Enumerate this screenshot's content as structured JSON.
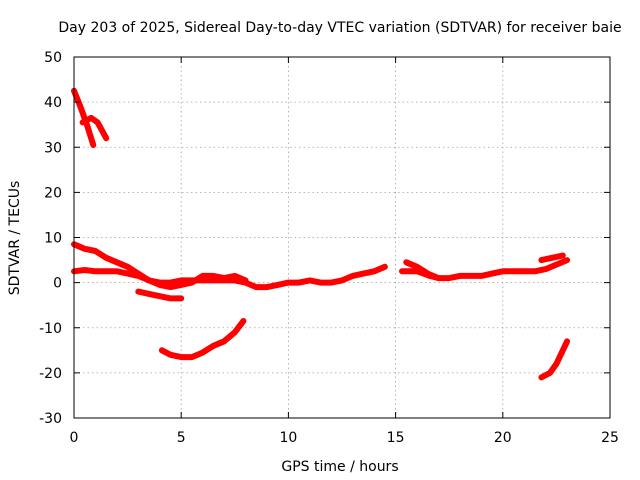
{
  "chart_data": {
    "type": "line",
    "title": "Day 203 of 2025, Sidereal Day-to-day VTEC variation (SDTVAR) for receiver baie",
    "xlabel": "GPS time / hours",
    "ylabel": "SDTVAR / TECUs",
    "xlim": [
      0,
      25
    ],
    "ylim": [
      -30,
      50
    ],
    "grid": true,
    "x_ticks": [
      0,
      5,
      10,
      15,
      20,
      25
    ],
    "y_ticks": [
      -30,
      -20,
      -10,
      0,
      10,
      20,
      30,
      40,
      50
    ],
    "x_tick_labels": [
      "0",
      "5",
      "10",
      "15",
      "20",
      "25"
    ],
    "y_tick_labels": [
      "-30",
      "-20",
      "-10",
      "0",
      "10",
      "20",
      "30",
      "40",
      "50"
    ],
    "color": "#ff0000",
    "series": [
      {
        "name": "trace-1",
        "points": [
          [
            0.0,
            42.5
          ],
          [
            0.3,
            39
          ],
          [
            0.6,
            35
          ],
          [
            0.9,
            30.5
          ]
        ]
      },
      {
        "name": "trace-2",
        "points": [
          [
            0.4,
            35.5
          ],
          [
            0.8,
            36.5
          ],
          [
            1.1,
            35.5
          ],
          [
            1.5,
            32
          ]
        ]
      },
      {
        "name": "trace-3",
        "points": [
          [
            0.0,
            8.5
          ],
          [
            0.5,
            7.5
          ],
          [
            1.0,
            7
          ],
          [
            1.5,
            5.5
          ],
          [
            2.0,
            4.5
          ],
          [
            2.5,
            3.5
          ],
          [
            3.0,
            2
          ],
          [
            3.5,
            0.5
          ],
          [
            4.0,
            -0.5
          ],
          [
            4.5,
            -1
          ],
          [
            5.0,
            -0.5
          ],
          [
            5.5,
            0
          ],
          [
            6.0,
            1.5
          ],
          [
            6.5,
            1.5
          ],
          [
            7.0,
            1
          ],
          [
            7.5,
            1.5
          ],
          [
            8.0,
            0.5
          ]
        ]
      },
      {
        "name": "trace-4",
        "points": [
          [
            0.0,
            2.5
          ],
          [
            0.5,
            2.8
          ],
          [
            1.0,
            2.5
          ],
          [
            1.5,
            2.5
          ],
          [
            2.0,
            2.5
          ],
          [
            2.5,
            2
          ],
          [
            3.0,
            1.5
          ],
          [
            3.5,
            0.5
          ],
          [
            4.0,
            0
          ],
          [
            4.5,
            0
          ],
          [
            5.0,
            0.5
          ],
          [
            5.5,
            0.5
          ],
          [
            6.0,
            0.5
          ],
          [
            6.5,
            0.5
          ],
          [
            7.0,
            0.5
          ],
          [
            7.5,
            0.5
          ],
          [
            8.0,
            0
          ],
          [
            8.5,
            -1
          ],
          [
            9.0,
            -1
          ],
          [
            9.5,
            -0.5
          ],
          [
            10.0,
            0
          ],
          [
            10.5,
            0
          ],
          [
            11.0,
            0.5
          ],
          [
            11.5,
            0
          ],
          [
            12.0,
            0
          ],
          [
            12.5,
            0.5
          ],
          [
            13.0,
            1.5
          ],
          [
            13.5,
            2
          ],
          [
            14.0,
            2.5
          ],
          [
            14.5,
            3.5
          ]
        ]
      },
      {
        "name": "trace-5",
        "points": [
          [
            3.0,
            -2
          ],
          [
            3.5,
            -2.5
          ],
          [
            4.0,
            -3
          ],
          [
            4.5,
            -3.5
          ],
          [
            5.0,
            -3.5
          ]
        ]
      },
      {
        "name": "trace-6",
        "points": [
          [
            4.1,
            -15
          ],
          [
            4.5,
            -16
          ],
          [
            5.0,
            -16.5
          ],
          [
            5.5,
            -16.5
          ],
          [
            6.0,
            -15.5
          ],
          [
            6.5,
            -14
          ],
          [
            7.0,
            -13
          ],
          [
            7.5,
            -11
          ],
          [
            7.9,
            -8.5
          ]
        ]
      },
      {
        "name": "trace-7",
        "points": [
          [
            15.3,
            2.5
          ],
          [
            15.7,
            2.5
          ],
          [
            16.0,
            2.5
          ],
          [
            16.3,
            2
          ],
          [
            16.6,
            1.5
          ],
          [
            17.0,
            1
          ],
          [
            17.5,
            1
          ],
          [
            18.0,
            1.5
          ],
          [
            18.5,
            1.5
          ],
          [
            19.0,
            1.5
          ],
          [
            19.5,
            2
          ],
          [
            20.0,
            2.5
          ],
          [
            20.5,
            2.5
          ],
          [
            21.0,
            2.5
          ],
          [
            21.5,
            2.5
          ],
          [
            22.0,
            3
          ],
          [
            22.5,
            4
          ],
          [
            23.0,
            5
          ]
        ]
      },
      {
        "name": "trace-8",
        "points": [
          [
            15.5,
            4.5
          ],
          [
            16.0,
            3.5
          ],
          [
            16.5,
            2
          ],
          [
            17.0,
            1
          ]
        ]
      },
      {
        "name": "trace-9",
        "points": [
          [
            21.8,
            5
          ],
          [
            22.3,
            5.5
          ],
          [
            22.8,
            6
          ]
        ]
      },
      {
        "name": "trace-10",
        "points": [
          [
            21.8,
            -21
          ],
          [
            22.2,
            -20
          ],
          [
            22.5,
            -18
          ],
          [
            22.7,
            -16
          ],
          [
            23.0,
            -13
          ]
        ]
      }
    ]
  }
}
